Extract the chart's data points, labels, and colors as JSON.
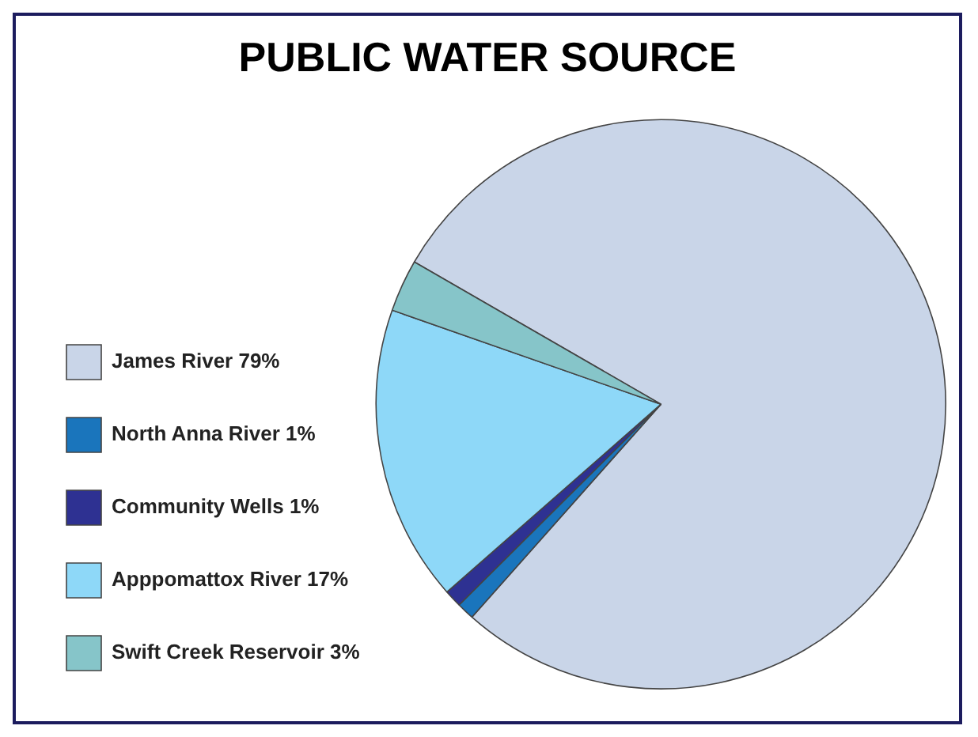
{
  "chart_data": {
    "type": "pie",
    "title": "PUBLIC WATER SOURCE",
    "categories": [
      "James River 79%",
      "North Anna River 1%",
      "Community Wells 1%",
      "Apppomattox River 17%",
      "Swift Creek Reservoir 3%"
    ],
    "values": [
      79,
      1,
      1,
      17,
      3
    ],
    "colors": [
      "#c9d5e8",
      "#1a75bc",
      "#2e3192",
      "#8ed8f8",
      "#86c5c9"
    ],
    "legend": "left"
  }
}
